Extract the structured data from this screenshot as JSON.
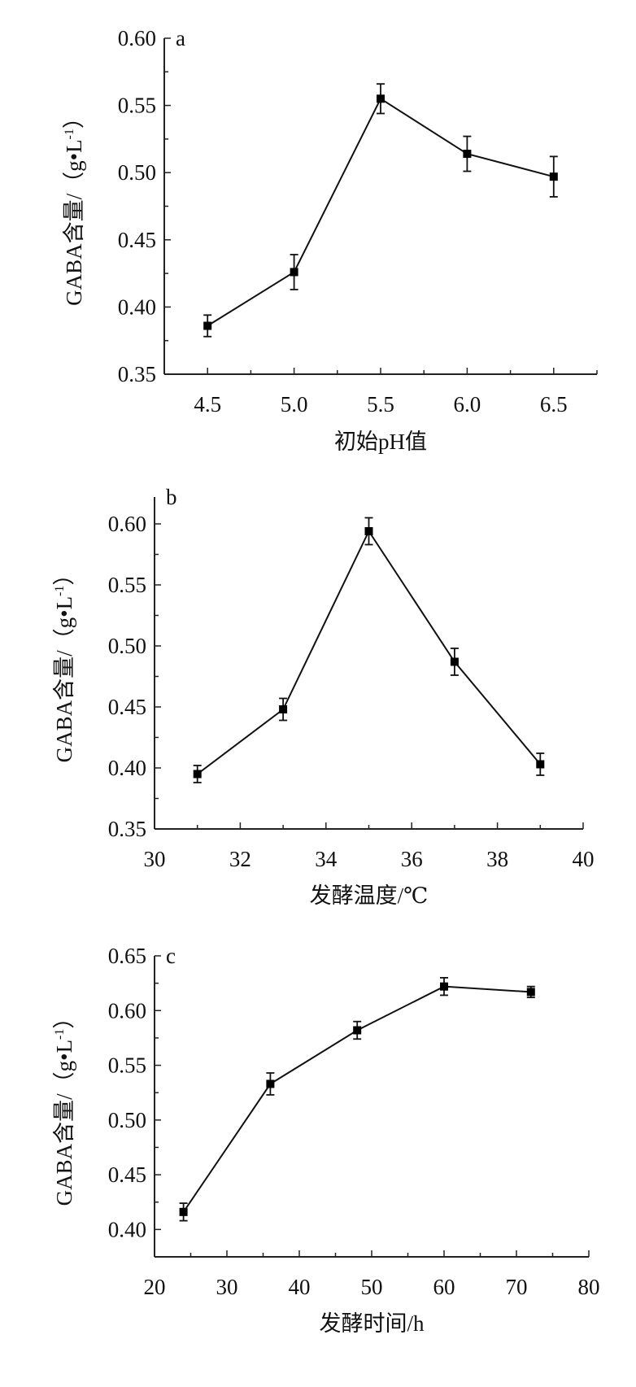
{
  "chart_data": [
    {
      "type": "line",
      "panel_label": "a",
      "xlabel": "初始pH值",
      "ylabel": {
        "main": "GABA含量/（g•L",
        "sup": "-1",
        "close": "）"
      },
      "x": [
        4.5,
        5.0,
        5.5,
        6.0,
        6.5
      ],
      "y": [
        0.386,
        0.426,
        0.555,
        0.514,
        0.497
      ],
      "error": [
        0.008,
        0.013,
        0.011,
        0.013,
        0.015
      ],
      "xlim": [
        4.25,
        6.75
      ],
      "ylim": [
        0.35,
        0.6
      ],
      "xticks": [
        "4.5",
        "5.0",
        "5.5",
        "6.0",
        "6.5"
      ],
      "yticks": [
        "0.35",
        "0.40",
        "0.45",
        "0.50",
        "0.55",
        "0.60"
      ],
      "grid": false
    },
    {
      "type": "line",
      "panel_label": "b",
      "xlabel": "发酵温度/℃",
      "ylabel": {
        "main": "GABA含量/（g•L",
        "sup": "-1",
        "close": "）"
      },
      "x": [
        31,
        33,
        35,
        37,
        39
      ],
      "y": [
        0.395,
        0.448,
        0.594,
        0.487,
        0.403
      ],
      "error": [
        0.007,
        0.009,
        0.011,
        0.011,
        0.009
      ],
      "xlim": [
        30,
        40
      ],
      "ylim": [
        0.35,
        0.622
      ],
      "xticks": [
        "30",
        "32",
        "34",
        "36",
        "38",
        "40"
      ],
      "yticks": [
        "0.35",
        "0.40",
        "0.45",
        "0.50",
        "0.55",
        "0.60"
      ],
      "grid": false
    },
    {
      "type": "line",
      "panel_label": "c",
      "xlabel": "发酵时间/h",
      "ylabel": {
        "main": "GABA含量/（g•L",
        "sup": "-1",
        "close": "）"
      },
      "x": [
        24,
        36,
        48,
        60,
        72
      ],
      "y": [
        0.416,
        0.533,
        0.582,
        0.622,
        0.617
      ],
      "error": [
        0.008,
        0.01,
        0.008,
        0.008,
        0.005
      ],
      "xlim": [
        20,
        80
      ],
      "ylim": [
        0.375,
        0.65
      ],
      "xticks": [
        "20",
        "30",
        "40",
        "50",
        "60",
        "70",
        "80"
      ],
      "yticks": [
        "0.40",
        "0.45",
        "0.50",
        "0.55",
        "0.60",
        "0.65"
      ],
      "grid": false
    }
  ]
}
